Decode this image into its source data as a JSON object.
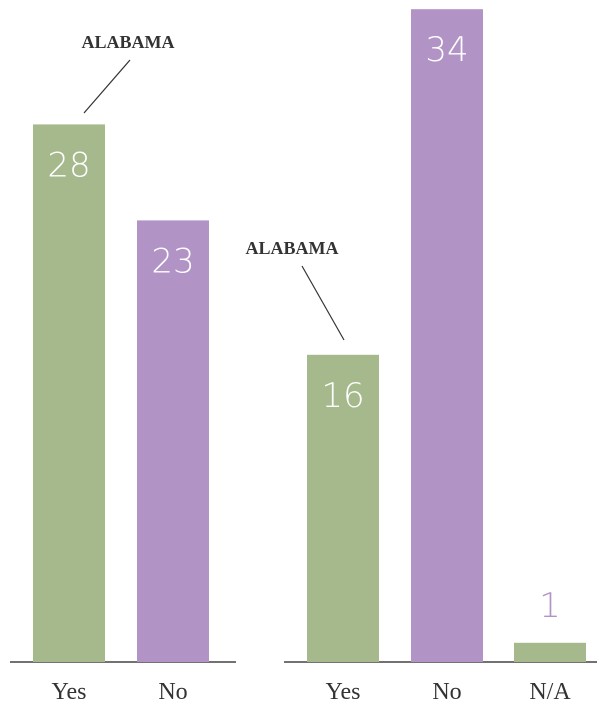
{
  "chart_data": [
    {
      "type": "bar",
      "categories": [
        "Yes",
        "No"
      ],
      "values": [
        28,
        23
      ],
      "colors": [
        "#a6b98d",
        "#b293c6"
      ],
      "annotation": "ALABAMA"
    },
    {
      "type": "bar",
      "categories": [
        "Yes",
        "No",
        "N/A"
      ],
      "values": [
        16,
        34,
        1
      ],
      "colors": [
        "#a6b98d",
        "#b293c6",
        "#a6b98d"
      ],
      "annotation": "ALABAMA"
    }
  ]
}
